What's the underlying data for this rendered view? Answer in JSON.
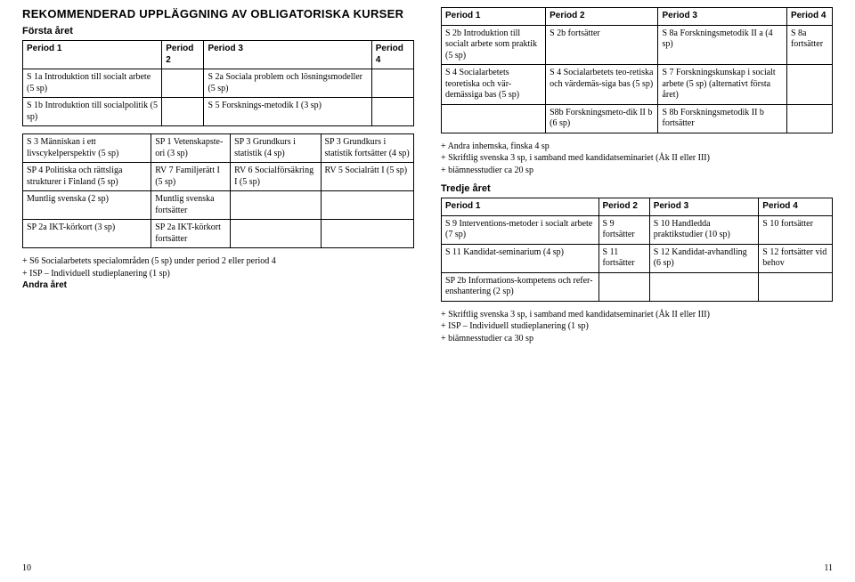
{
  "mainHeading": "REKOMMENDERAD UPPLÄGGNING AV OBLIGATORISKA KURSER",
  "year1Heading": "Första året",
  "year2Heading": "Andra året",
  "year3Heading": "Tredje året",
  "periodHeaders": [
    "Period 1",
    "Period 2",
    "Period 3",
    "Period 4"
  ],
  "table1": {
    "rows": [
      [
        "S 1a Introduktion till socialt arbete (5 sp)",
        "",
        "S 2a Sociala problem och lösningsmodeller (5 sp)",
        ""
      ],
      [
        "S 1b Introduktion till socialpolitik (5 sp)",
        "",
        "S 5 Forsknings-metodik I (3 sp)",
        ""
      ]
    ]
  },
  "table2": {
    "rows": [
      [
        "S 3 Människan i ett livscykelperspektiv (5 sp)",
        "SP 1 Vetenskapste-ori (3 sp)",
        "SP 3 Grundkurs i statistik (4 sp)",
        "SP 3 Grundkurs i statistik fortsätter (4 sp)"
      ],
      [
        "SP 4 Politiska och rättsliga strukturer i Finland (5 sp)",
        "RV 7 Familjerätt I (5 sp)",
        "RV 6 Socialförsäkring I (5 sp)",
        "RV 5 Socialrätt I (5 sp)"
      ],
      [
        "Muntlig svenska (2 sp)",
        "Muntlig svenska fortsätter",
        "",
        ""
      ],
      [
        "SP 2a IKT-körkort (3 sp)",
        "SP 2a IKT-körkort fortsätter",
        "",
        ""
      ]
    ]
  },
  "notes1": [
    "+ S6 Socialarbetets specialområden (5 sp) under period 2 eller period 4",
    "+ ISP – Individuell studieplanering (1 sp)"
  ],
  "table3": {
    "rows": [
      [
        "S 2b Introduktion till socialt arbete som praktik (5 sp)",
        "S 2b fortsätter",
        "S 8a Forskningsmetodik II a (4 sp)",
        "S 8a fortsätter"
      ],
      [
        "S 4 Socialarbetets teoretiska och vär-demässiga bas (5 sp)",
        "S 4 Socialarbetets teo-retiska och värdemäs-siga bas (5 sp)",
        "S 7 Forskningskunskap i socialt arbete (5 sp) (alternativt första året)",
        ""
      ],
      [
        "",
        "S8b Forskningsmeto-dik II b (6 sp)",
        "S 8b Forskningsmetodik II b fortsätter",
        ""
      ]
    ]
  },
  "notes2": [
    "+ Andra inhemska, finska 4 sp",
    "+ Skriftlig svenska 3 sp, i samband med kandidatseminariet (Åk II eller III)",
    "+ biämnesstudier ca 20 sp"
  ],
  "table4": {
    "rows": [
      [
        "S 9 Interventions-metoder i socialt arbete (7 sp)",
        "S 9 fortsätter",
        "S 10 Handledda praktikstudier (10 sp)",
        "S 10 fortsätter"
      ],
      [
        "S 11 Kandidat-seminarium (4 sp)",
        "S 11 fortsätter",
        "S 12 Kandidat-avhandling (6 sp)",
        "S 12 fortsätter vid behov"
      ],
      [
        "SP 2b Informations-kompetens och refer-enshantering (2 sp)",
        "",
        "",
        ""
      ]
    ]
  },
  "notes3": [
    "+ Skriftlig svenska 3 sp, i samband med kandidatseminariet (Åk II eller III)",
    "+ ISP – Individuell studieplanering (1 sp)",
    "+ biämnesstudier ca 30 sp"
  ],
  "pageNumLeft": "10",
  "pageNumRight": "11"
}
